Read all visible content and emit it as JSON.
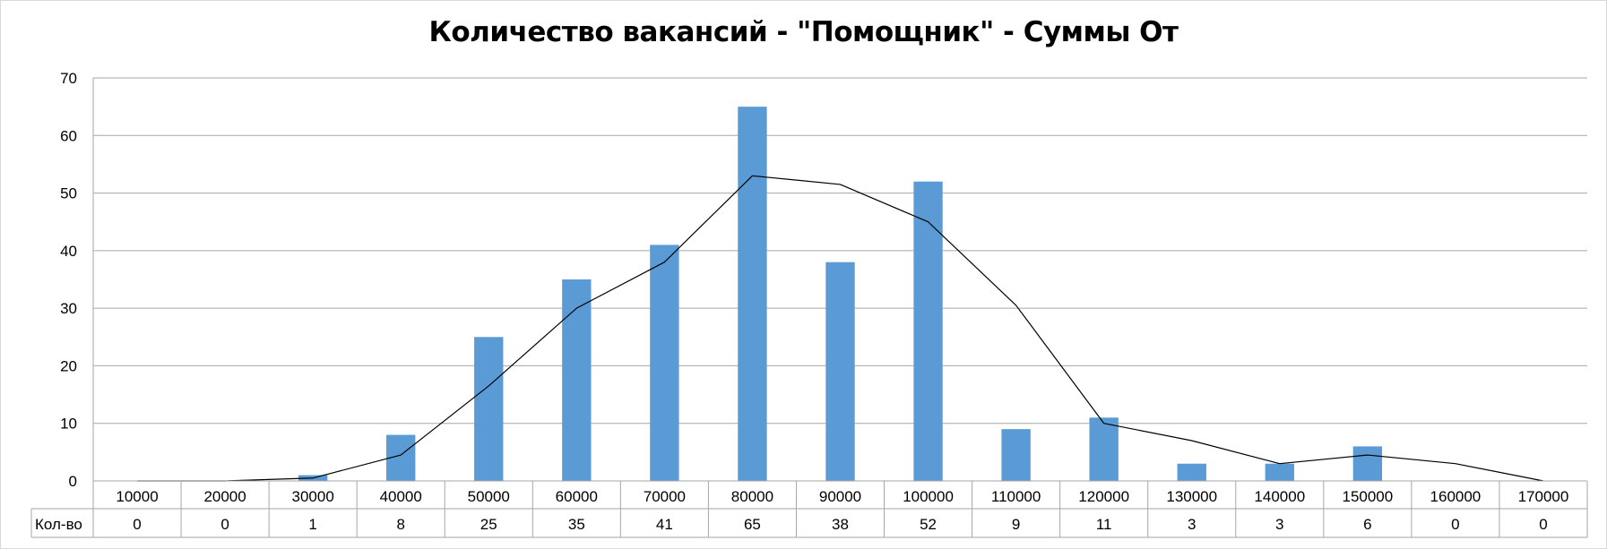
{
  "chart_data": {
    "type": "bar",
    "title": "Количество вакансий - \"Помощник\" - Суммы От",
    "categories": [
      "10000",
      "20000",
      "30000",
      "40000",
      "50000",
      "60000",
      "70000",
      "80000",
      "90000",
      "100000",
      "110000",
      "120000",
      "130000",
      "140000",
      "150000",
      "160000",
      "170000"
    ],
    "series": [
      {
        "name": "Кол-во",
        "type": "bar",
        "color": "#5b9bd5",
        "values": [
          0,
          0,
          1,
          8,
          25,
          35,
          41,
          65,
          38,
          52,
          9,
          11,
          3,
          3,
          6,
          0,
          0
        ]
      },
      {
        "type": "line",
        "color": "#000000",
        "values": [
          0,
          0,
          0.5,
          4.5,
          16.5,
          30,
          38,
          53,
          51.5,
          45,
          30.5,
          10,
          7,
          3,
          4.5,
          3,
          0
        ]
      }
    ],
    "ylim": [
      0,
      70
    ],
    "yticks": [
      0,
      10,
      20,
      30,
      40,
      50,
      60,
      70
    ],
    "grid": true,
    "data_table": true
  }
}
